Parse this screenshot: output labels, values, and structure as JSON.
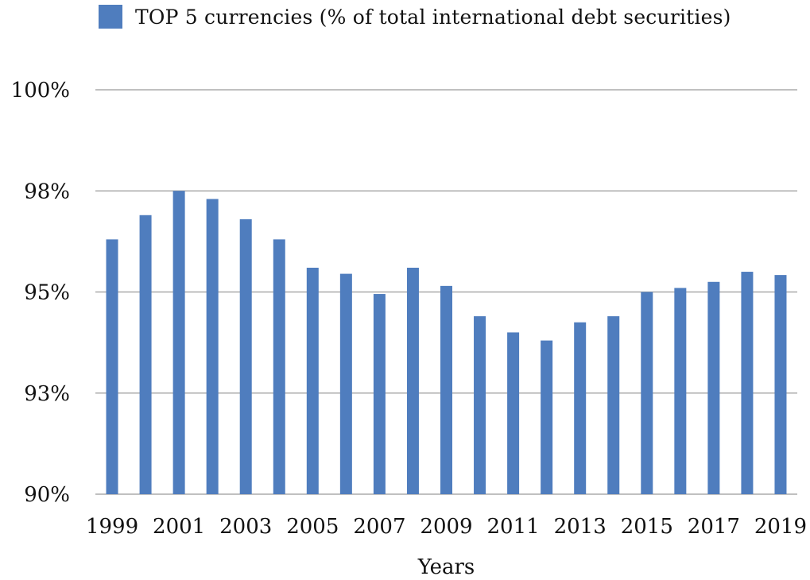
{
  "chart_data": {
    "type": "bar",
    "title": "",
    "xlabel": "Years",
    "ylabel": "",
    "legend": {
      "position": "top",
      "entries": [
        "TOP 5 currencies (% of total international debt securities)"
      ]
    },
    "series": [
      {
        "name": "TOP 5 currencies (% of total international debt securities)",
        "color": "#4F7DBE",
        "values": [
          96.3,
          96.9,
          97.5,
          97.3,
          96.8,
          96.3,
          95.6,
          95.45,
          94.95,
          95.6,
          95.15,
          94.4,
          94.0,
          93.8,
          94.25,
          94.4,
          95.0,
          95.1,
          95.25,
          95.5,
          95.42
        ]
      }
    ],
    "categories": [
      "1999",
      "2000",
      "2001",
      "2002",
      "2003",
      "2004",
      "2005",
      "2006",
      "2007",
      "2008",
      "2009",
      "2010",
      "2011",
      "2012",
      "2013",
      "2014",
      "2015",
      "2016",
      "2017",
      "2018",
      "2019"
    ],
    "xtick_labels": [
      "1999",
      "2001",
      "2003",
      "2005",
      "2007",
      "2009",
      "2011",
      "2013",
      "2015",
      "2017",
      "2019"
    ],
    "ylim": [
      90,
      100
    ],
    "yticks": [
      {
        "value": 90,
        "label": "90%"
      },
      {
        "value": 92.5,
        "label": "93%"
      },
      {
        "value": 95,
        "label": "95%"
      },
      {
        "value": 97.5,
        "label": "98%"
      },
      {
        "value": 100,
        "label": "100%"
      }
    ],
    "grid": true
  }
}
